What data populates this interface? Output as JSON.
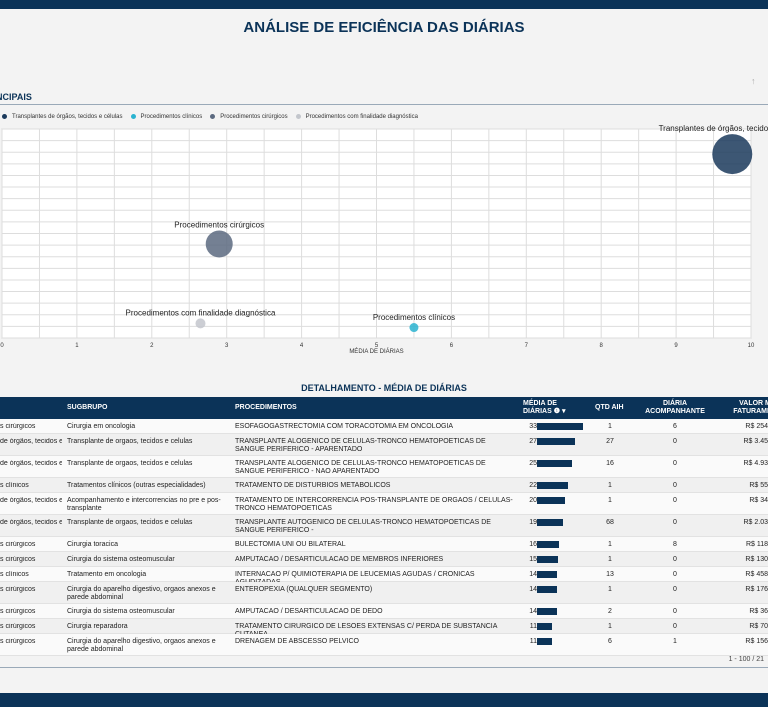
{
  "title": "ANÁLISE DE EFICIÊNCIA DAS DIÁRIAS",
  "section_title": "NCIPAIS",
  "chart_data": {
    "type": "scatter",
    "xlabel": "MÉDIA DE DIÁRIAS",
    "xlim": [
      0,
      10
    ],
    "xticks": [
      "0",
      "1",
      "2",
      "3",
      "4",
      "5",
      "6",
      "7",
      "8",
      "9",
      "10"
    ],
    "ylim": [
      0,
      100
    ],
    "grid": true,
    "legend_position": "top-left",
    "series": [
      {
        "name": "Transplantes de órgãos, tecidos e células",
        "label": "Transplantes de órgãos, tecidos e células",
        "x": 9.75,
        "y": 88,
        "size": 40,
        "color": "#1b3a5c"
      },
      {
        "name": "Procedimentos clínicos",
        "label": "Procedimentos clínicos",
        "x": 5.5,
        "y": 5,
        "size": 9,
        "color": "#2ab3d0"
      },
      {
        "name": "Procedimentos cirúrgicos",
        "label": "Procedimentos cirúrgicos",
        "x": 2.9,
        "y": 45,
        "size": 27,
        "color": "#5c6a80"
      },
      {
        "name": "Procedimentos com finalidade diagnóstica",
        "label": "Procedimentos com finalidade diagnóstica",
        "x": 2.65,
        "y": 7,
        "size": 10,
        "color": "#c3c6cc"
      }
    ]
  },
  "detail_title": "DETALHAMENTO - MÉDIA DE DIÁRIAS",
  "table": {
    "headers": {
      "grupo": "",
      "subgrupo": "SUGBRUPO",
      "procedimentos": "PROCEDIMENTOS",
      "media": "MÉDIA DE DIÁRIAS ❶ ▾",
      "qtd": "QTD AIH",
      "diaria": "DIÁRIA ACOMPANHANTE",
      "valor": "VALOR M FATURAMEN"
    },
    "max_media": 33,
    "rows": [
      {
        "grupo": "s cirúrgicos",
        "subgrupo": "Cirurgia em oncologia",
        "proc": "ESOFAGOGASTRECTOMIA COM TORACOTOMIA EM ONCOLOGIA",
        "media": 33,
        "qtd": "1",
        "diaria": "6",
        "valor": "R$ 254"
      },
      {
        "grupo": "de órgãos, tecidos e",
        "subgrupo": "Transplante de orgaos, tecidos e celulas",
        "proc": "TRANSPLANTE ALOGENICO DE CELULAS-TRONCO HEMATOPOETICAS DE SANGUE PERIFERICO - APARENTADO",
        "media": 27,
        "qtd": "27",
        "diaria": "0",
        "valor": "R$ 3.45"
      },
      {
        "grupo": "de órgãos, tecidos e",
        "subgrupo": "Transplante de orgaos, tecidos e celulas",
        "proc": "TRANSPLANTE ALOGENICO DE CELULAS-TRONCO HEMATOPOETICAS DE SANGUE PERIFERICO - NAO APARENTADO",
        "media": 25,
        "qtd": "16",
        "diaria": "0",
        "valor": "R$ 4.93"
      },
      {
        "grupo": "s clínicos",
        "subgrupo": "Tratamentos clínicos (outras especialidades)",
        "proc": "TRATAMENTO DE DISTURBIOS METABOLICOS",
        "media": 22,
        "qtd": "1",
        "diaria": "0",
        "valor": "R$ 55"
      },
      {
        "grupo": "de órgãos, tecidos e",
        "subgrupo": "Acompanhamento e intercorrencias no pre e pos-transplante",
        "proc": "TRATAMENTO DE INTERCORRENCIA POS-TRANSPLANTE DE ORGAOS / CELULAS-TRONCO HEMATOPOETICAS",
        "media": 20,
        "qtd": "1",
        "diaria": "0",
        "valor": "R$ 34"
      },
      {
        "grupo": "de órgãos, tecidos e",
        "subgrupo": "Transplante de orgaos, tecidos e celulas",
        "proc": "TRANSPLANTE AUTOGENICO DE CELULAS-TRONCO HEMATOPOETICAS DE SANGUE PERIFERICO -",
        "media": 19,
        "qtd": "68",
        "diaria": "0",
        "valor": "R$ 2.03"
      },
      {
        "grupo": "s cirúrgicos",
        "subgrupo": "Cirurgia toracica",
        "proc": "BULECTOMIA UNI OU BILATERAL",
        "media": 16,
        "qtd": "1",
        "diaria": "8",
        "valor": "R$ 118"
      },
      {
        "grupo": "s cirúrgicos",
        "subgrupo": "Cirurgia do sistema osteomuscular",
        "proc": "AMPUTACAO / DESARTICULACAO DE MEMBROS INFERIORES",
        "media": 15,
        "qtd": "1",
        "diaria": "0",
        "valor": "R$ 130"
      },
      {
        "grupo": "s clínicos",
        "subgrupo": "Tratamento em oncologia",
        "proc": "INTERNACAO P/ QUIMIOTERAPIA DE LEUCEMIAS AGUDAS / CRONICAS AGUDIZADAS",
        "media": 14,
        "qtd": "13",
        "diaria": "0",
        "valor": "R$ 458"
      },
      {
        "grupo": "s cirúrgicos",
        "subgrupo": "Cirurgia do aparelho digestivo, orgaos anexos e parede abdominal",
        "proc": "ENTEROPEXIA (QUALQUER SEGMENTO)",
        "media": 14,
        "qtd": "1",
        "diaria": "0",
        "valor": "R$ 176"
      },
      {
        "grupo": "s cirúrgicos",
        "subgrupo": "Cirurgia do sistema osteomuscular",
        "proc": "AMPUTACAO / DESARTICULACAO DE DEDO",
        "media": 14,
        "qtd": "2",
        "diaria": "0",
        "valor": "R$ 36"
      },
      {
        "grupo": "s cirúrgicos",
        "subgrupo": "Cirurgia reparadora",
        "proc": "TRATAMENTO CIRURGICO DE LESOES EXTENSAS C/ PERDA DE SUBSTANCIA CUTANEA",
        "media": 11,
        "qtd": "1",
        "diaria": "0",
        "valor": "R$ 70"
      },
      {
        "grupo": "s cirúrgicos",
        "subgrupo": "Cirurgia do aparelho digestivo, orgaos anexos e parede abdominal",
        "proc": "DRENAGEM DE ABSCESSO PELVICO",
        "media": 11,
        "qtd": "6",
        "diaria": "1",
        "valor": "R$ 156"
      }
    ],
    "pagination": "1 - 100 / 21"
  }
}
